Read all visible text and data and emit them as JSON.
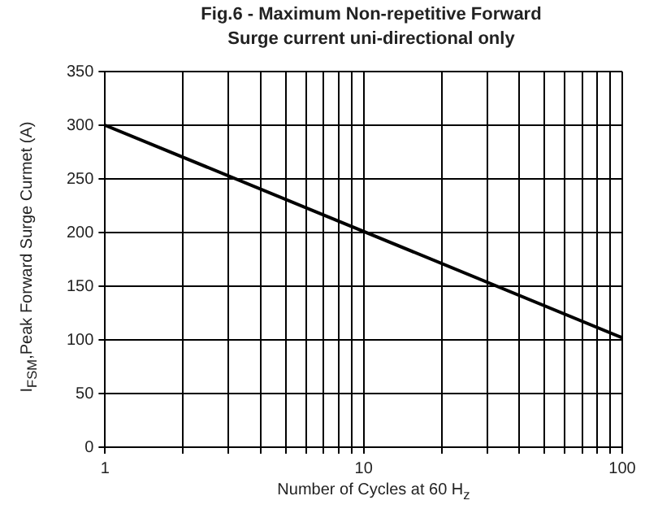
{
  "chart_data": {
    "type": "line",
    "title": "Fig.6  - Maximum Non-repetitive  Forward\nSurge current uni-directional  only",
    "xlabel": "Number of Cycles at 60 H$_{z}$",
    "ylabel": "I$_{FSM}$,Peak  Forward Surge Curmet  (A)",
    "series": [
      {
        "color": "#000000",
        "x": [
          1,
          100
        ],
        "values": [
          300,
          102
        ]
      }
    ],
    "log": "x",
    "xlim": [
      1,
      100
    ],
    "xticks": [
      1,
      {
        "value": 2,
        "label": null
      },
      {
        "value": 3,
        "label": null
      },
      {
        "value": 4,
        "label": null
      },
      {
        "value": 5,
        "label": null
      },
      {
        "value": 6,
        "label": null
      },
      {
        "value": 7,
        "label": null
      },
      {
        "value": 8,
        "label": null
      },
      {
        "value": 9,
        "label": null
      },
      10,
      {
        "value": 20,
        "label": null
      },
      {
        "value": 30,
        "label": null
      },
      {
        "value": 40,
        "label": null
      },
      {
        "value": 50,
        "label": null
      },
      {
        "value": 60,
        "label": null
      },
      {
        "value": 70,
        "label": null
      },
      {
        "value": 80,
        "label": null
      },
      {
        "value": 90,
        "label": null
      },
      100
    ],
    "ylim": [
      0,
      350
    ],
    "yticks": [
      0,
      50,
      100,
      150,
      200,
      250,
      300,
      350
    ],
    "grid": true,
    "legend": false,
    "marker": "none",
    "line_style": "solid"
  }
}
